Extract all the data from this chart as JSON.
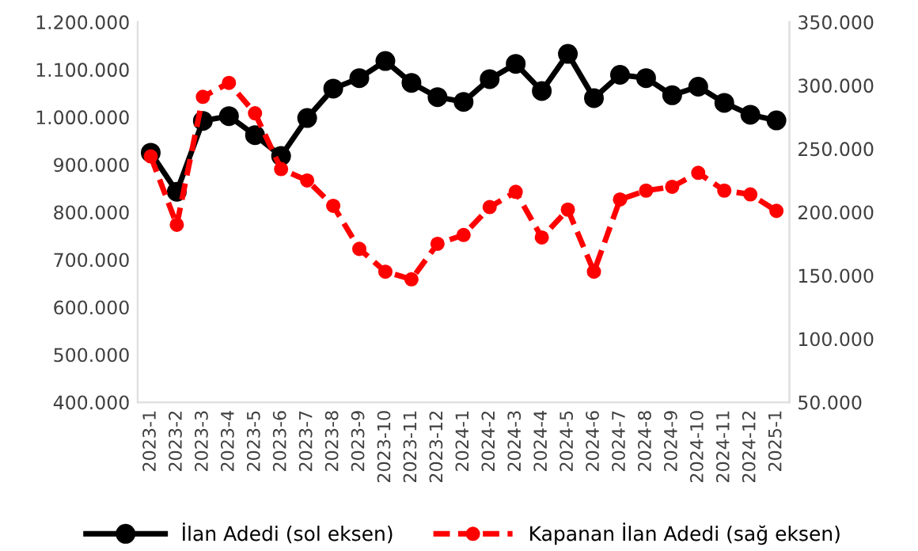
{
  "chart_data": {
    "type": "line",
    "categories": [
      "2023-1",
      "2023-2",
      "2023-3",
      "2023-4",
      "2023-5",
      "2023-6",
      "2023-7",
      "2023-8",
      "2023-9",
      "2023-10",
      "2023-11",
      "2023-12",
      "2024-1",
      "2024-2",
      "2024-3",
      "2024-4",
      "2024-5",
      "2024-6",
      "2024-7",
      "2024-8",
      "2024-9",
      "2024-10",
      "2024-11",
      "2024-12",
      "2025-1"
    ],
    "series": [
      {
        "name": "İlan Adedi (sol eksen)",
        "color": "#000000",
        "line_style": "solid",
        "axis": "y",
        "values": [
          925000,
          843000,
          992000,
          1002000,
          962000,
          918000,
          998000,
          1060000,
          1082000,
          1118000,
          1072000,
          1042000,
          1032000,
          1080000,
          1112000,
          1055000,
          1133000,
          1040000,
          1089000,
          1082000,
          1046000,
          1064000,
          1030000,
          1005000,
          993000
        ]
      },
      {
        "name": "Kapanan İlan Adedi (sağ eksen)",
        "color": "#ff0000",
        "line_style": "dashed",
        "axis": "y2",
        "values": [
          244000,
          190000,
          291000,
          302000,
          278000,
          234000,
          225000,
          205000,
          171000,
          153000,
          147000,
          175000,
          182000,
          204000,
          216000,
          180000,
          202000,
          153000,
          210000,
          217000,
          220000,
          231000,
          217000,
          214000,
          201000
        ]
      }
    ],
    "ylim": [
      400000,
      1200000
    ],
    "yticks": [
      {
        "value": 400000,
        "label": "400.000"
      },
      {
        "value": 500000,
        "label": "500.000"
      },
      {
        "value": 600000,
        "label": "600.000"
      },
      {
        "value": 700000,
        "label": "700.000"
      },
      {
        "value": 800000,
        "label": "800.000"
      },
      {
        "value": 900000,
        "label": "900.000"
      },
      {
        "value": 1000000,
        "label": "1.000.000"
      },
      {
        "value": 1100000,
        "label": "1.100.000"
      },
      {
        "value": 1200000,
        "label": "1.200.000"
      }
    ],
    "y2lim": [
      50000,
      350000
    ],
    "y2ticks": [
      {
        "value": 50000,
        "label": "50.000"
      },
      {
        "value": 100000,
        "label": "100.000"
      },
      {
        "value": 150000,
        "label": "150.000"
      },
      {
        "value": 200000,
        "label": "200.000"
      },
      {
        "value": 250000,
        "label": "250.000"
      },
      {
        "value": 300000,
        "label": "300.000"
      },
      {
        "value": 350000,
        "label": "350.000"
      }
    ],
    "marker": "circle",
    "grid": false,
    "legend": "bottom"
  }
}
